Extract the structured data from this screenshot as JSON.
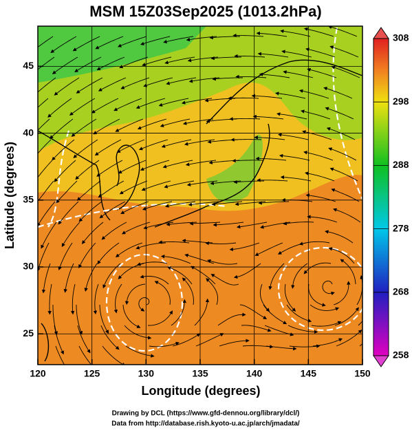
{
  "chart_data": {
    "type": "map",
    "title": "MSM 15Z03Sep2025 (1013.2hPa)",
    "xlabel": "Longitude (degrees)",
    "ylabel": "Latitude  (degrees)",
    "xlim": [
      120,
      150
    ],
    "xticks": [
      120,
      125,
      130,
      135,
      140,
      145,
      150
    ],
    "ylim": [
      22.7,
      48.0
    ],
    "yticks": [
      25,
      30,
      35,
      40,
      45
    ],
    "grid": true,
    "colorbar": {
      "lim": [
        258,
        308
      ],
      "ticks": [
        258,
        268,
        278,
        288,
        298,
        308
      ]
    },
    "credits": [
      "Drawing by DCL (https://www.gfd-dennou.org/library/dcl/)",
      "Data from http://database.rish.kyoto-u.ac.jp/arch/jmadata/"
    ]
  }
}
